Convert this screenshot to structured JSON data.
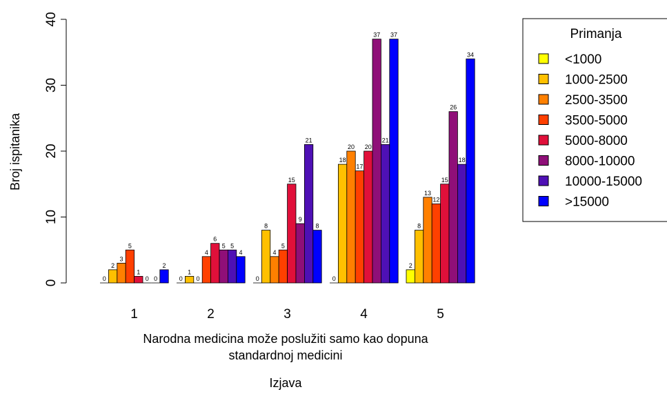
{
  "chart_data": {
    "type": "bar",
    "ylabel": "Broj ispitanika",
    "xlabel_line1": "Narodna medicina može poslužiti samo kao dopuna",
    "xlabel_line2": "standardnoj medicini",
    "xlabel_sub": "Izjava",
    "ylim": [
      0,
      40
    ],
    "y_ticks": [
      "0",
      "10",
      "20",
      "30",
      "40"
    ],
    "categories": [
      "1",
      "2",
      "3",
      "4",
      "5"
    ],
    "legend_title": "Primanja",
    "legend_position": "top-right",
    "series": [
      {
        "name": "<1000",
        "color": "#FFFF00",
        "values": [
          0,
          0,
          0,
          0,
          2
        ]
      },
      {
        "name": "1000-2500",
        "color": "#FFC000",
        "values": [
          2,
          1,
          8,
          18,
          8
        ]
      },
      {
        "name": "2500-3500",
        "color": "#FF8000",
        "values": [
          3,
          0,
          4,
          20,
          13
        ]
      },
      {
        "name": "3500-5000",
        "color": "#FF4000",
        "values": [
          5,
          4,
          5,
          17,
          12
        ]
      },
      {
        "name": "5000-8000",
        "color": "#E0103A",
        "values": [
          1,
          6,
          15,
          20,
          15
        ]
      },
      {
        "name": "8000-10000",
        "color": "#8F0F78",
        "values": [
          0,
          5,
          9,
          37,
          26
        ]
      },
      {
        "name": "10000-15000",
        "color": "#4E10B5",
        "values": [
          0,
          5,
          21,
          21,
          18
        ]
      },
      {
        "name": ">15000",
        "color": "#0000FF",
        "values": [
          2,
          4,
          8,
          37,
          34
        ]
      }
    ]
  }
}
